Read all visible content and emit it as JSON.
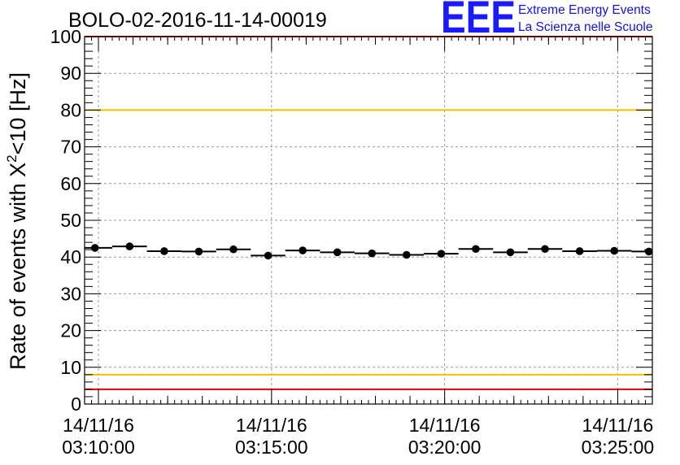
{
  "logo": {
    "mark": "EEE",
    "line1": "Extreme Energy Events",
    "line2": "La Scienza nelle Scuole",
    "color": "#1a1aff"
  },
  "chart_data": {
    "type": "scatter",
    "title": "BOLO-02-2016-11-14-00019",
    "ylabel": "Rate of events with X",
    "ylabel_sup": "2",
    "ylabel_suffix": "<10 [Hz]",
    "xlabel": "",
    "ylim": [
      0,
      100
    ],
    "xlim_minutes": [
      9.6,
      26.0
    ],
    "y_ticks": [
      0,
      10,
      20,
      30,
      40,
      50,
      60,
      70,
      80,
      90,
      100
    ],
    "x_ticks": [
      {
        "minute": 10,
        "date": "14/11/16",
        "time": "03:10:00"
      },
      {
        "minute": 15,
        "date": "14/11/16",
        "time": "03:15:00"
      },
      {
        "minute": 20,
        "date": "14/11/16",
        "time": "03:20:00"
      },
      {
        "minute": 25,
        "date": "14/11/16",
        "time": "03:25:00"
      }
    ],
    "bin_width_minutes": 1,
    "points": [
      {
        "x": 9.9,
        "y": 42.5
      },
      {
        "x": 10.9,
        "y": 42.9
      },
      {
        "x": 11.9,
        "y": 41.6
      },
      {
        "x": 12.9,
        "y": 41.5
      },
      {
        "x": 13.9,
        "y": 42.1
      },
      {
        "x": 14.9,
        "y": 40.4
      },
      {
        "x": 15.9,
        "y": 41.8
      },
      {
        "x": 16.9,
        "y": 41.3
      },
      {
        "x": 17.9,
        "y": 41.0
      },
      {
        "x": 18.9,
        "y": 40.6
      },
      {
        "x": 19.9,
        "y": 40.9
      },
      {
        "x": 20.9,
        "y": 42.2
      },
      {
        "x": 21.9,
        "y": 41.3
      },
      {
        "x": 22.9,
        "y": 42.2
      },
      {
        "x": 23.9,
        "y": 41.6
      },
      {
        "x": 24.9,
        "y": 41.7
      },
      {
        "x": 25.9,
        "y": 41.5
      }
    ],
    "reference_lines": [
      {
        "y": 80,
        "color": "#f0c000",
        "name": "upper-yellow"
      },
      {
        "y": 8,
        "color": "#f0c000",
        "name": "lower-yellow"
      },
      {
        "y": 100,
        "color": "#e00000",
        "name": "upper-red"
      },
      {
        "y": 4,
        "color": "#e00000",
        "name": "lower-red"
      }
    ],
    "grid": true
  }
}
